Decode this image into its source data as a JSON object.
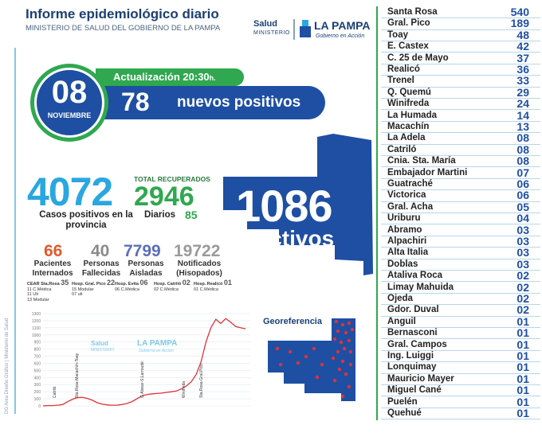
{
  "header": {
    "title": "Informe epidemiológico diario",
    "subtitle": "MINISTERIO DE SALUD DEL GOBIERNO DE LA PAMPA"
  },
  "logo": {
    "salud": "Salud",
    "ministerio": "MINISTERIO",
    "la_pampa": "LA PAMPA",
    "gobierno": "Gobierno en Acción"
  },
  "date": {
    "day": "08",
    "month": "NOVIEMBRE"
  },
  "update": {
    "label": "Actualización 20:30",
    "suffix": "h."
  },
  "new_positives": {
    "value": "78",
    "label": "nuevos positivos"
  },
  "totals": {
    "cases": "4072",
    "cases_label": "Casos positivos en la provincia",
    "recovered_title": "TOTAL RECUPERADOS",
    "recovered": "2946",
    "daily_label": "Diarios",
    "daily": "85"
  },
  "active": {
    "value": "1086",
    "label": "Activos"
  },
  "stats": {
    "hospitalized": "66",
    "hospitalized_label": "Pacientes Internados",
    "deceased": "40",
    "deceased_label": "Personas Fallecidas",
    "isolated": "7799",
    "isolated_label": "Personas Aisladas",
    "notified": "19722",
    "notified_label": "Notificados (Hisopados)"
  },
  "hospitals": [
    {
      "name": "CEAR Sta.Rosa",
      "count": "35",
      "lines": [
        "11 C.Médica",
        "11 Uti",
        "13 Modular"
      ]
    },
    {
      "name": "Hosp. Gral. Pico",
      "count": "22",
      "lines": [
        "15 Modular",
        "07 uti"
      ]
    },
    {
      "name": "Hosp. Evita",
      "count": "06",
      "lines": [
        "06 C.Médica"
      ]
    },
    {
      "name": "Hosp. Catriló",
      "count": "02",
      "lines": [
        "02 C.Médica"
      ]
    },
    {
      "name": "Hosp. Realicó",
      "count": "01",
      "lines": [
        "01 C.Médica"
      ]
    }
  ],
  "chart_data": {
    "type": "line",
    "y_ticks": [
      "1300",
      "1200",
      "1100",
      "1000",
      "900",
      "800",
      "700",
      "600",
      "500",
      "400",
      "300",
      "200",
      "100",
      "0"
    ],
    "ylim": [
      0,
      1300
    ],
    "annotations": [
      "Catriló",
      "Sta.Rosa-Macachín-Toay",
      "G.Alvear-S.Larroudé",
      "Winifreda",
      "Sta.Rosa-Gral.Pico"
    ],
    "values": [
      2,
      4,
      6,
      10,
      20,
      60,
      95,
      118,
      120,
      105,
      80,
      45,
      25,
      15,
      10,
      10,
      20,
      35,
      60,
      100,
      140,
      160,
      170,
      175,
      180,
      190,
      200,
      210,
      240,
      280,
      340,
      440,
      620,
      900,
      1100,
      1220,
      1160,
      1230,
      1180,
      1120,
      1100,
      1086
    ],
    "watermark": {
      "salud": "Salud",
      "ministerio": "MINISTERIO",
      "la_pampa": "LA PAMPA",
      "gobierno": "Gobierno en Acción"
    }
  },
  "georef": {
    "title": "Georeferencia"
  },
  "localities": [
    {
      "name": "Santa Rosa",
      "count": "540"
    },
    {
      "name": "Gral. Pico",
      "count": "189"
    },
    {
      "name": "Toay",
      "count": "48"
    },
    {
      "name": "E. Castex",
      "count": "42"
    },
    {
      "name": "C. 25 de Mayo",
      "count": "37"
    },
    {
      "name": "Realicó",
      "count": "36"
    },
    {
      "name": "Trenel",
      "count": "33"
    },
    {
      "name": "Q. Quemú",
      "count": "29"
    },
    {
      "name": "Winifreda",
      "count": "24"
    },
    {
      "name": "La Humada",
      "count": "14"
    },
    {
      "name": "Macachín",
      "count": "13"
    },
    {
      "name": "La Adela",
      "count": "08"
    },
    {
      "name": "Catriló",
      "count": "08"
    },
    {
      "name": "Cnia. Sta. María",
      "count": "08"
    },
    {
      "name": "Embajador Martini",
      "count": "07"
    },
    {
      "name": "Guatraché",
      "count": "06"
    },
    {
      "name": "Victorica",
      "count": "06"
    },
    {
      "name": "Gral. Acha",
      "count": "05"
    },
    {
      "name": "Uriburu",
      "count": "04"
    },
    {
      "name": "Abramo",
      "count": "03"
    },
    {
      "name": "Alpachiri",
      "count": "03"
    },
    {
      "name": "Alta Italia",
      "count": "03"
    },
    {
      "name": "Doblas",
      "count": "03"
    },
    {
      "name": "Ataliva Roca",
      "count": "02"
    },
    {
      "name": "Limay Mahuida",
      "count": "02"
    },
    {
      "name": "Ojeda",
      "count": "02"
    },
    {
      "name": "Gdor. Duval",
      "count": "02"
    },
    {
      "name": "Anguil",
      "count": "01"
    },
    {
      "name": "Bernasconi",
      "count": "01"
    },
    {
      "name": "Gral. Campos",
      "count": "01"
    },
    {
      "name": "Ing. Luiggi",
      "count": "01"
    },
    {
      "name": "Lonquimay",
      "count": "01"
    },
    {
      "name": "Mauricio Mayer",
      "count": "01"
    },
    {
      "name": "Miguel Cané",
      "count": "01"
    },
    {
      "name": "Puelén",
      "count": "01"
    },
    {
      "name": "Quehué",
      "count": "01"
    }
  ],
  "credit": "DG Area Diseño Gráfico | Ministerio de Salud",
  "colors": {
    "blue": "#1e4fa3",
    "green": "#2fa84f",
    "sky": "#2aa7e0",
    "red": "#e0323a"
  }
}
